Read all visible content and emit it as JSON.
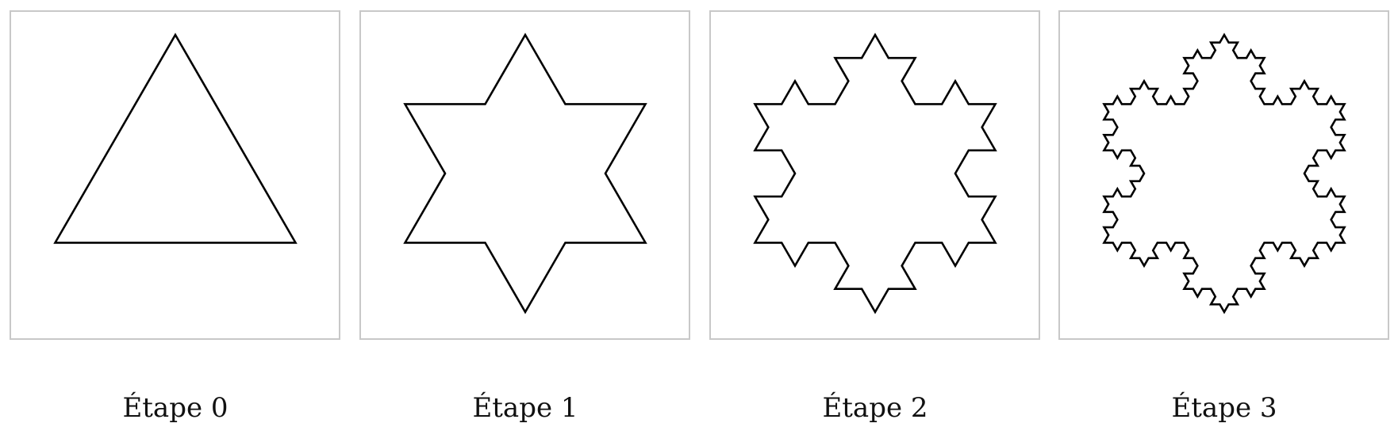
{
  "figure": {
    "panels": [
      {
        "label": "Étape 0",
        "iteration": 0
      },
      {
        "label": "Étape 1",
        "iteration": 1
      },
      {
        "label": "Étape 2",
        "iteration": 2
      },
      {
        "label": "Étape 3",
        "iteration": 3
      }
    ]
  },
  "colors": {
    "frame": "#c8c8c8",
    "stroke": "#000000",
    "background": "#ffffff"
  }
}
